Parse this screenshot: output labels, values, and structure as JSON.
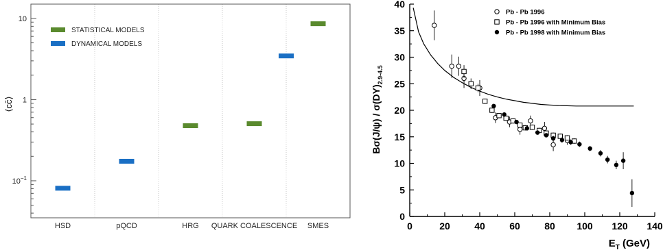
{
  "chart_data": [
    {
      "type": "bar",
      "subtype": "horizontal-segments on log y axis",
      "yscale": "log",
      "ylim": [
        0.035,
        15
      ],
      "ytick_labels": [
        {
          "value": 0.1,
          "base": "10",
          "exp": "−1"
        },
        {
          "value": 1,
          "label": "1"
        },
        {
          "value": 10,
          "label": "10"
        }
      ],
      "ylabel": "⟨cc̄⟩",
      "xlabel": "",
      "grid": "vertical dotted separators between categories",
      "categories": [
        "HSD",
        "pQCD",
        "HRG",
        "QUARK COALESCENCE",
        "SMES"
      ],
      "values": [
        0.081,
        0.174,
        0.477,
        0.505,
        8.6
      ],
      "value_colors": [
        "#1a6fc4",
        "#1a6fc4",
        "#5a8a2e",
        "#5a8a2e",
        "#5a8a2e"
      ],
      "extra_segments": [
        {
          "between": [
            "QUARK COALESCENCE",
            "SMES"
          ],
          "value": 3.45,
          "color": "#1a6fc4"
        }
      ],
      "legend": {
        "placement": "top-left",
        "entries": [
          {
            "label": "STATISTICAL MODELS",
            "color": "#5a8a2e"
          },
          {
            "label": "DYNAMICAL MODELS",
            "color": "#1a6fc4"
          }
        ]
      }
    },
    {
      "type": "scatter",
      "xlabel_main": "E",
      "xlabel_sub": "T",
      "xlabel_rest": " (GeV)",
      "ylabel": "Bσ(J/ψ) / σ(DY)",
      "ylabel_sub": "2.9-4.5",
      "xlim": [
        0,
        140
      ],
      "ylim": [
        0,
        40
      ],
      "xticks": [
        0,
        20,
        40,
        60,
        80,
        100,
        120,
        140
      ],
      "yticks": [
        0,
        5,
        10,
        15,
        20,
        25,
        30,
        35,
        40
      ],
      "legend": {
        "placement": "top-right",
        "entries": [
          {
            "label": "Pb - Pb 1996",
            "marker": "open-circle"
          },
          {
            "label": "Pb - Pb 1996 with Minimum Bias",
            "marker": "open-square"
          },
          {
            "label": "Pb - Pb 1998 with Minimum Bias",
            "marker": "filled-circle"
          }
        ]
      },
      "series": [
        {
          "marker": "open-circle",
          "points": [
            {
              "x": 14,
              "y": 36.0,
              "err": 2.8
            },
            {
              "x": 24,
              "y": 28.3,
              "err": 2.2
            },
            {
              "x": 28,
              "y": 28.3,
              "err": 1.8
            },
            {
              "x": 31,
              "y": 26.0,
              "err": 1.8
            },
            {
              "x": 40,
              "y": 24.2,
              "err": 1.5
            },
            {
              "x": 49,
              "y": 18.6,
              "err": 1.0
            },
            {
              "x": 57,
              "y": 17.8,
              "err": 1.0
            },
            {
              "x": 63,
              "y": 16.4,
              "err": 1.0
            },
            {
              "x": 69,
              "y": 18.0,
              "err": 1.0
            },
            {
              "x": 77,
              "y": 16.6,
              "err": 1.2
            },
            {
              "x": 82,
              "y": 13.5,
              "err": 1.2
            },
            {
              "x": 90,
              "y": 14.3,
              "err": 0.8
            }
          ]
        },
        {
          "marker": "open-square",
          "points": [
            {
              "x": 31,
              "y": 27.3,
              "err": 1.2
            },
            {
              "x": 35,
              "y": 25.0,
              "err": 1.0
            },
            {
              "x": 39,
              "y": 24.2,
              "err": 0.8
            },
            {
              "x": 43,
              "y": 21.7,
              "err": 0.5
            },
            {
              "x": 47,
              "y": 20.0,
              "err": 0.5
            },
            {
              "x": 51,
              "y": 19.0,
              "err": 0.5
            },
            {
              "x": 55,
              "y": 18.5,
              "err": 0.5
            },
            {
              "x": 59,
              "y": 18.0,
              "err": 0.5
            },
            {
              "x": 63,
              "y": 17.2,
              "err": 0.5
            },
            {
              "x": 66,
              "y": 16.7,
              "err": 0.5
            },
            {
              "x": 70,
              "y": 16.8,
              "err": 0.5
            },
            {
              "x": 74,
              "y": 16.2,
              "err": 0.5
            },
            {
              "x": 78,
              "y": 15.7,
              "err": 0.5
            },
            {
              "x": 82,
              "y": 15.3,
              "err": 0.5
            },
            {
              "x": 86,
              "y": 15.1,
              "err": 0.5
            },
            {
              "x": 90,
              "y": 14.8,
              "err": 0.5
            },
            {
              "x": 94,
              "y": 14.2,
              "err": 0.5
            }
          ]
        },
        {
          "marker": "filled-circle",
          "points": [
            {
              "x": 48,
              "y": 20.8,
              "err": 0.4
            },
            {
              "x": 54,
              "y": 19.2,
              "err": 0.4
            },
            {
              "x": 61,
              "y": 17.8,
              "err": 0.4
            },
            {
              "x": 67,
              "y": 16.6,
              "err": 0.4
            },
            {
              "x": 73,
              "y": 15.8,
              "err": 0.4
            },
            {
              "x": 78,
              "y": 15.3,
              "err": 0.4
            },
            {
              "x": 82,
              "y": 14.7,
              "err": 0.5
            },
            {
              "x": 87,
              "y": 14.4,
              "err": 0.5
            },
            {
              "x": 92,
              "y": 14.0,
              "err": 0.5
            },
            {
              "x": 97,
              "y": 13.6,
              "err": 0.5
            },
            {
              "x": 103,
              "y": 12.8,
              "err": 0.5
            },
            {
              "x": 109,
              "y": 11.9,
              "err": 0.6
            },
            {
              "x": 113,
              "y": 10.7,
              "err": 0.7
            },
            {
              "x": 118,
              "y": 9.7,
              "err": 0.8
            },
            {
              "x": 122,
              "y": 10.5,
              "err": 1.6
            },
            {
              "x": 127,
              "y": 4.4,
              "err": 2.6
            }
          ]
        }
      ],
      "curve": {
        "x": [
          2,
          5,
          8,
          12,
          16,
          20,
          25,
          30,
          35,
          40,
          45,
          50,
          55,
          60,
          65,
          70,
          75,
          80,
          85,
          90,
          95,
          100,
          110,
          120,
          128
        ],
        "y": [
          39.3,
          34.8,
          32.5,
          30.4,
          28.8,
          27.5,
          26.2,
          25.2,
          24.3,
          23.6,
          23.0,
          22.5,
          22.1,
          21.8,
          21.5,
          21.3,
          21.1,
          21.0,
          20.9,
          20.85,
          20.8,
          20.8,
          20.8,
          20.8,
          20.8
        ]
      }
    }
  ]
}
